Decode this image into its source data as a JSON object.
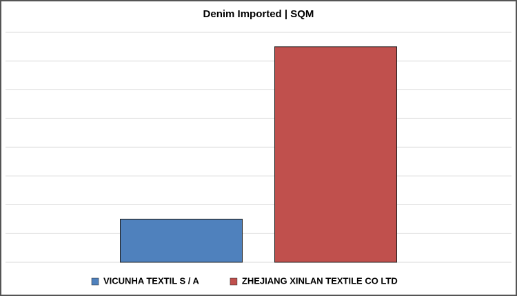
{
  "chart_data": {
    "type": "bar",
    "title": "Denim Imported | SQM",
    "categories": [
      null
    ],
    "series": [
      {
        "name": "VICUNHA TEXTIL S / A",
        "color": "#4f81bd",
        "values": [
          1.5
        ]
      },
      {
        "name": "ZHEJIANG XINLAN TEXTILE CO LTD",
        "color": "#c0504d",
        "values": [
          7.5
        ]
      }
    ],
    "ylim": [
      0,
      8
    ],
    "yticks": [
      0,
      1,
      2,
      3,
      4,
      5,
      6,
      7,
      8
    ],
    "grid": true,
    "legend": "bottom"
  }
}
